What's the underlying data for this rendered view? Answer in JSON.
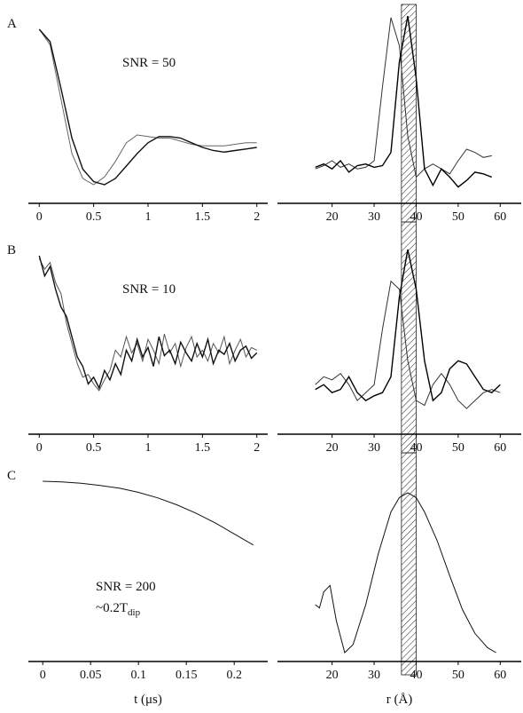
{
  "chart_data": [
    {
      "type": "line",
      "panel_label": "A",
      "annotation": "SNR = 50",
      "x": [
        0,
        0.1,
        0.2,
        0.3,
        0.4,
        0.5,
        0.6,
        0.7,
        0.8,
        0.9,
        1,
        1.1,
        1.2,
        1.3,
        1.4,
        1.5,
        1.6,
        1.7,
        1.8,
        1.9,
        2
      ],
      "series": [
        {
          "color": "#666666",
          "values": [
            1.0,
            0.9,
            0.55,
            0.2,
            0.04,
            0.0,
            0.05,
            0.15,
            0.27,
            0.32,
            0.31,
            0.3,
            0.3,
            0.28,
            0.26,
            0.25,
            0.25,
            0.25,
            0.26,
            0.27,
            0.27
          ]
        },
        {
          "color": "#111111",
          "values": [
            1.0,
            0.92,
            0.62,
            0.3,
            0.1,
            0.02,
            0.0,
            0.04,
            0.12,
            0.2,
            0.27,
            0.31,
            0.31,
            0.3,
            0.27,
            0.24,
            0.22,
            0.21,
            0.22,
            0.23,
            0.24
          ]
        }
      ],
      "xlim": [
        -0.1,
        2.1
      ],
      "xticks": [
        0,
        0.5,
        1,
        1.5,
        2
      ],
      "ylim": [
        0,
        1
      ]
    },
    {
      "type": "line",
      "shaded_range": [
        36.5,
        40
      ],
      "x": [
        16,
        18,
        20,
        22,
        24,
        26,
        28,
        30,
        32,
        34,
        36,
        38,
        40,
        42,
        44,
        46,
        48,
        50,
        52,
        54,
        56,
        58
      ],
      "series": [
        {
          "color": "#333333",
          "values": [
            0.05,
            0.07,
            0.1,
            0.06,
            0.08,
            0.05,
            0.06,
            0.1,
            0.55,
            0.97,
            0.8,
            0.25,
            0.0,
            0.05,
            0.08,
            0.05,
            0.02,
            0.1,
            0.17,
            0.15,
            0.12,
            0.13
          ]
        },
        {
          "color": "#000000",
          "values": [
            0.06,
            0.08,
            0.05,
            0.1,
            0.03,
            0.07,
            0.08,
            0.06,
            0.07,
            0.15,
            0.7,
            0.98,
            0.6,
            0.05,
            -0.05,
            0.05,
            0.0,
            -0.06,
            -0.02,
            0.03,
            0.02,
            0.0
          ]
        }
      ],
      "xlim": [
        7,
        65
      ],
      "xticks": [
        20,
        30,
        40,
        50,
        60
      ],
      "ylim": [
        -0.1,
        1.05
      ]
    },
    {
      "type": "line",
      "panel_label": "B",
      "annotation": "SNR = 10",
      "x": [
        0,
        0.05,
        0.1,
        0.15,
        0.2,
        0.25,
        0.3,
        0.35,
        0.4,
        0.45,
        0.5,
        0.55,
        0.6,
        0.65,
        0.7,
        0.75,
        0.8,
        0.85,
        0.9,
        0.95,
        1,
        1.05,
        1.1,
        1.15,
        1.2,
        1.25,
        1.3,
        1.35,
        1.4,
        1.45,
        1.5,
        1.55,
        1.6,
        1.65,
        1.7,
        1.75,
        1.8,
        1.85,
        1.9,
        1.95,
        2
      ],
      "series": [
        {
          "color": "#555555",
          "values": [
            0.98,
            0.9,
            0.95,
            0.8,
            0.72,
            0.5,
            0.35,
            0.2,
            0.1,
            0.12,
            0.05,
            0.0,
            0.08,
            0.15,
            0.3,
            0.25,
            0.4,
            0.28,
            0.35,
            0.22,
            0.38,
            0.3,
            0.2,
            0.42,
            0.28,
            0.35,
            0.18,
            0.32,
            0.4,
            0.25,
            0.3,
            0.22,
            0.35,
            0.28,
            0.4,
            0.2,
            0.3,
            0.38,
            0.25,
            0.32,
            0.3
          ]
        },
        {
          "color": "#111111",
          "values": [
            1.0,
            0.85,
            0.92,
            0.75,
            0.62,
            0.55,
            0.4,
            0.25,
            0.18,
            0.05,
            0.1,
            0.02,
            0.15,
            0.08,
            0.2,
            0.12,
            0.3,
            0.22,
            0.38,
            0.25,
            0.32,
            0.18,
            0.4,
            0.26,
            0.3,
            0.2,
            0.36,
            0.28,
            0.22,
            0.35,
            0.25,
            0.38,
            0.2,
            0.3,
            0.27,
            0.35,
            0.22,
            0.3,
            0.33,
            0.24,
            0.28
          ]
        }
      ],
      "xlim": [
        -0.1,
        2.1
      ],
      "xticks": [
        0,
        0.5,
        1,
        1.5,
        2
      ],
      "ylim": [
        0,
        1
      ]
    },
    {
      "type": "line",
      "shaded_range": [
        36.5,
        40
      ],
      "x": [
        16,
        18,
        20,
        22,
        24,
        26,
        28,
        30,
        32,
        34,
        36,
        38,
        40,
        42,
        44,
        46,
        48,
        50,
        52,
        54,
        56,
        58,
        60
      ],
      "series": [
        {
          "color": "#333333",
          "values": [
            0.15,
            0.2,
            0.18,
            0.22,
            0.15,
            0.05,
            0.1,
            0.15,
            0.5,
            0.8,
            0.75,
            0.3,
            0.05,
            0.02,
            0.15,
            0.22,
            0.15,
            0.05,
            0.0,
            0.05,
            0.1,
            0.12,
            0.1
          ]
        },
        {
          "color": "#000000",
          "values": [
            0.12,
            0.15,
            0.1,
            0.12,
            0.2,
            0.1,
            0.05,
            0.08,
            0.1,
            0.2,
            0.7,
            1.0,
            0.75,
            0.3,
            0.05,
            0.1,
            0.25,
            0.3,
            0.28,
            0.2,
            0.12,
            0.1,
            0.15
          ]
        }
      ],
      "xlim": [
        7,
        65
      ],
      "xticks": [
        20,
        30,
        40,
        50,
        60
      ],
      "ylim": [
        -0.1,
        1.05
      ]
    },
    {
      "type": "line",
      "panel_label": "C",
      "annotation": "SNR = 200",
      "annotation2": "~0.2T",
      "annotation2_sub": "dip",
      "xlabel": "t (μs)",
      "x": [
        0,
        0.02,
        0.04,
        0.06,
        0.08,
        0.1,
        0.12,
        0.14,
        0.16,
        0.18,
        0.2,
        0.22
      ],
      "series": [
        {
          "color": "#111111",
          "values": [
            1.0,
            0.995,
            0.985,
            0.97,
            0.95,
            0.92,
            0.88,
            0.83,
            0.77,
            0.7,
            0.62,
            0.54
          ]
        }
      ],
      "xlim": [
        -0.015,
        0.235
      ],
      "xticks": [
        0,
        0.05,
        0.1,
        0.15,
        0.2
      ],
      "ylim": [
        0,
        1
      ]
    },
    {
      "type": "line",
      "shaded_range": [
        36.5,
        40
      ],
      "xlabel": "r (Å)",
      "x": [
        16,
        17,
        18,
        19.5,
        21,
        23,
        25,
        28,
        31,
        34,
        36,
        38,
        40,
        42,
        45,
        48,
        51,
        54,
        57,
        59
      ],
      "series": [
        {
          "color": "#111111",
          "values": [
            0.3,
            0.28,
            0.38,
            0.42,
            0.2,
            0.0,
            0.05,
            0.3,
            0.62,
            0.88,
            0.97,
            1.0,
            0.97,
            0.88,
            0.7,
            0.48,
            0.27,
            0.12,
            0.03,
            0.0
          ]
        }
      ],
      "xlim": [
        7,
        65
      ],
      "xticks": [
        20,
        30,
        40,
        50,
        60
      ],
      "ylim": [
        0,
        1
      ]
    }
  ]
}
